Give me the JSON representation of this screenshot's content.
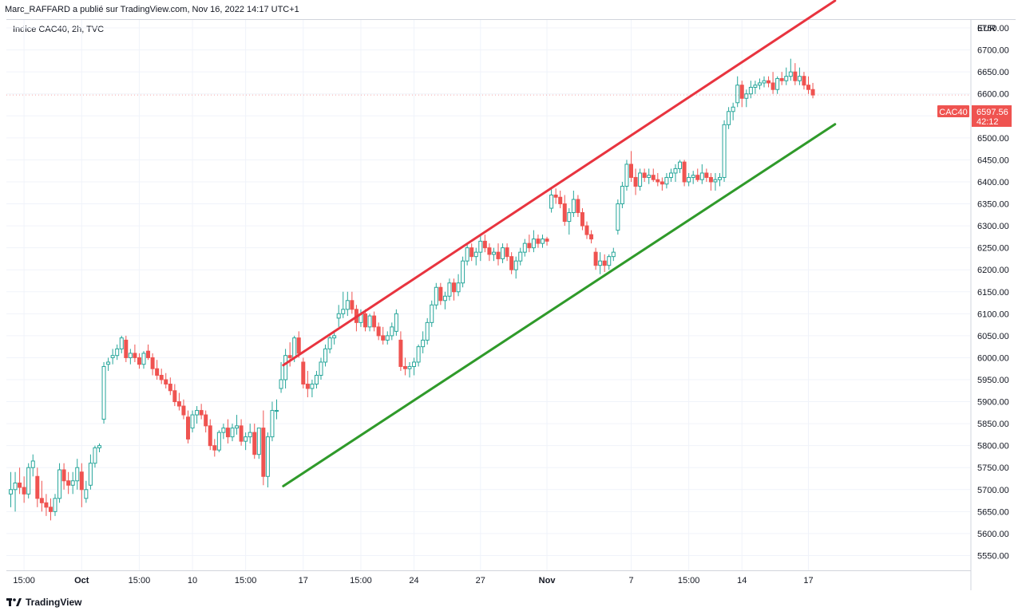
{
  "header": {
    "published_by": "Marc_RAFFARD a publié sur TradingView.com, Nov 16, 2022 14:17 UTC+1",
    "symbol_line": "Indice CAC40, 2h, TVC"
  },
  "footer": {
    "brand": "TradingView",
    "logo_icon": "tradingview-logo-icon"
  },
  "colors": {
    "up": "#26a69a",
    "down": "#ef5350",
    "resistance": "#e8343f",
    "support": "#2f9a2a",
    "grid": "#f0f3fa",
    "axis_border": "#d1d4dc"
  },
  "chart_data": {
    "type": "candlestick",
    "currency_label": "EUR",
    "y_ticks": [
      5550,
      5600,
      5650,
      5700,
      5750,
      5800,
      5850,
      5900,
      5950,
      6000,
      6050,
      6100,
      6150,
      6200,
      6250,
      6300,
      6350,
      6400,
      6450,
      6500,
      6550,
      6600,
      6650,
      6700,
      6750
    ],
    "y_tick_labels": [
      "5550.00",
      "5600.00",
      "5650.00",
      "5700.00",
      "5750.00",
      "5800.00",
      "5850.00",
      "5900.00",
      "5950.00",
      "6000.00",
      "6050.00",
      "6100.00",
      "6150.00",
      "6200.00",
      "6250.00",
      "6300.00",
      "6350.00",
      "6400.00",
      "6450.00",
      "6500.00",
      "6550.00",
      "6600.00",
      "6650.00",
      "6700.00",
      "6750.00"
    ],
    "ylim": [
      5520,
      6800
    ],
    "x_tick_labels": [
      {
        "label": "15:00",
        "bar": 3,
        "bold": false
      },
      {
        "label": "Oct",
        "bar": 16,
        "bold": true
      },
      {
        "label": "15:00",
        "bar": 29,
        "bold": false
      },
      {
        "label": "10",
        "bar": 41,
        "bold": false
      },
      {
        "label": "15:00",
        "bar": 53,
        "bold": false
      },
      {
        "label": "17",
        "bar": 66,
        "bold": false
      },
      {
        "label": "15:00",
        "bar": 79,
        "bold": false
      },
      {
        "label": "24",
        "bar": 91,
        "bold": false
      },
      {
        "label": "27",
        "bar": 106,
        "bold": false
      },
      {
        "label": "Nov",
        "bar": 121,
        "bold": true
      },
      {
        "label": "7",
        "bar": 140,
        "bold": false
      },
      {
        "label": "15:00",
        "bar": 153,
        "bold": false
      },
      {
        "label": "14",
        "bar": 165,
        "bold": false
      },
      {
        "label": "17",
        "bar": 180,
        "bold": false
      }
    ],
    "ohlc": [
      [
        5690,
        5740,
        5660,
        5700
      ],
      [
        5700,
        5740,
        5650,
        5715
      ],
      [
        5715,
        5750,
        5690,
        5705
      ],
      [
        5705,
        5730,
        5670,
        5690
      ],
      [
        5690,
        5760,
        5680,
        5750
      ],
      [
        5750,
        5780,
        5730,
        5765
      ],
      [
        5730,
        5750,
        5660,
        5680
      ],
      [
        5680,
        5720,
        5650,
        5670
      ],
      [
        5670,
        5690,
        5640,
        5660
      ],
      [
        5660,
        5680,
        5630,
        5650
      ],
      [
        5650,
        5690,
        5640,
        5680
      ],
      [
        5680,
        5760,
        5670,
        5745
      ],
      [
        5745,
        5760,
        5700,
        5720
      ],
      [
        5720,
        5740,
        5690,
        5710
      ],
      [
        5710,
        5740,
        5690,
        5720
      ],
      [
        5720,
        5770,
        5700,
        5750
      ],
      [
        5740,
        5760,
        5660,
        5700
      ],
      [
        5680,
        5720,
        5670,
        5700
      ],
      [
        5710,
        5780,
        5700,
        5760
      ],
      [
        5760,
        5800,
        5750,
        5795
      ],
      [
        5795,
        5805,
        5785,
        5800
      ],
      [
        5860,
        5990,
        5850,
        5980
      ],
      [
        5985,
        6000,
        5970,
        5990
      ],
      [
        6000,
        6020,
        5985,
        6005
      ],
      [
        6005,
        6030,
        5995,
        6020
      ],
      [
        6020,
        6050,
        6010,
        6045
      ],
      [
        6040,
        6050,
        5990,
        6000
      ],
      [
        6000,
        6020,
        5985,
        6010
      ],
      [
        6010,
        6030,
        5990,
        6000
      ],
      [
        6000,
        6010,
        5975,
        5985
      ],
      [
        5985,
        6015,
        5975,
        6010
      ],
      [
        6015,
        6030,
        5995,
        6000
      ],
      [
        6000,
        6010,
        5960,
        5975
      ],
      [
        5975,
        5995,
        5950,
        5960
      ],
      [
        5960,
        5975,
        5940,
        5950
      ],
      [
        5950,
        5965,
        5930,
        5940
      ],
      [
        5940,
        5955,
        5915,
        5925
      ],
      [
        5925,
        5940,
        5890,
        5900
      ],
      [
        5900,
        5920,
        5880,
        5890
      ],
      [
        5890,
        5905,
        5860,
        5870
      ],
      [
        5865,
        5880,
        5805,
        5815
      ],
      [
        5840,
        5880,
        5830,
        5870
      ],
      [
        5870,
        5890,
        5850,
        5880
      ],
      [
        5880,
        5895,
        5860,
        5870
      ],
      [
        5870,
        5880,
        5830,
        5845
      ],
      [
        5845,
        5860,
        5790,
        5800
      ],
      [
        5800,
        5815,
        5775,
        5790
      ],
      [
        5790,
        5835,
        5785,
        5830
      ],
      [
        5830,
        5850,
        5815,
        5840
      ],
      [
        5840,
        5860,
        5805,
        5820
      ],
      [
        5820,
        5850,
        5810,
        5840
      ],
      [
        5840,
        5870,
        5825,
        5845
      ],
      [
        5845,
        5860,
        5800,
        5810
      ],
      [
        5810,
        5830,
        5790,
        5820
      ],
      [
        5820,
        5850,
        5805,
        5830
      ],
      [
        5830,
        5850,
        5770,
        5780
      ],
      [
        5780,
        5840,
        5770,
        5840
      ],
      [
        5840,
        5880,
        5710,
        5730
      ],
      [
        5730,
        5830,
        5705,
        5820
      ],
      [
        5820,
        5900,
        5810,
        5880
      ],
      [
        5880,
        5905,
        5860,
        5880
      ],
      [
        5930,
        5990,
        5920,
        5950
      ],
      [
        5950,
        6020,
        5930,
        6005
      ],
      [
        6005,
        6035,
        5980,
        6000
      ],
      [
        6000,
        6050,
        5990,
        6045
      ],
      [
        6045,
        6060,
        6000,
        6010
      ],
      [
        5990,
        6000,
        5930,
        5940
      ],
      [
        5940,
        5970,
        5910,
        5930
      ],
      [
        5930,
        5950,
        5910,
        5940
      ],
      [
        5940,
        5970,
        5930,
        5960
      ],
      [
        5960,
        6000,
        5950,
        5990
      ],
      [
        5990,
        6030,
        5980,
        6020
      ],
      [
        6020,
        6050,
        6010,
        6045
      ],
      [
        6045,
        6060,
        6030,
        6050
      ],
      [
        6090,
        6120,
        6070,
        6100
      ],
      [
        6100,
        6150,
        6090,
        6110
      ],
      [
        6110,
        6150,
        6095,
        6130
      ],
      [
        6130,
        6150,
        6100,
        6110
      ],
      [
        6110,
        6120,
        6060,
        6080
      ],
      [
        6080,
        6110,
        6070,
        6100
      ],
      [
        6100,
        6110,
        6060,
        6070
      ],
      [
        6070,
        6100,
        6060,
        6095
      ],
      [
        6095,
        6105,
        6060,
        6070
      ],
      [
        6070,
        6080,
        6040,
        6050
      ],
      [
        6050,
        6070,
        6030,
        6040
      ],
      [
        6040,
        6060,
        6030,
        6050
      ],
      [
        6050,
        6080,
        6040,
        6070
      ],
      [
        6060,
        6110,
        6050,
        6100
      ],
      [
        6040,
        6060,
        5970,
        5980
      ],
      [
        5980,
        6000,
        5960,
        5975
      ],
      [
        5975,
        5990,
        5955,
        5980
      ],
      [
        5980,
        6000,
        5960,
        5990
      ],
      [
        5990,
        6030,
        5980,
        6025
      ],
      [
        6025,
        6060,
        6010,
        6040
      ],
      [
        6040,
        6090,
        6030,
        6080
      ],
      [
        6080,
        6130,
        6070,
        6120
      ],
      [
        6120,
        6170,
        6110,
        6160
      ],
      [
        6160,
        6170,
        6120,
        6130
      ],
      [
        6130,
        6150,
        6110,
        6140
      ],
      [
        6140,
        6180,
        6130,
        6170
      ],
      [
        6170,
        6180,
        6130,
        6150
      ],
      [
        6150,
        6190,
        6140,
        6170
      ],
      [
        6170,
        6230,
        6160,
        6220
      ],
      [
        6220,
        6260,
        6210,
        6250
      ],
      [
        6250,
        6260,
        6220,
        6230
      ],
      [
        6230,
        6250,
        6210,
        6240
      ],
      [
        6240,
        6280,
        6220,
        6265
      ],
      [
        6265,
        6280,
        6240,
        6250
      ],
      [
        6250,
        6260,
        6220,
        6235
      ],
      [
        6235,
        6250,
        6220,
        6240
      ],
      [
        6240,
        6260,
        6210,
        6225
      ],
      [
        6225,
        6260,
        6215,
        6250
      ],
      [
        6250,
        6260,
        6220,
        6230
      ],
      [
        6230,
        6240,
        6190,
        6200
      ],
      [
        6200,
        6230,
        6180,
        6220
      ],
      [
        6220,
        6250,
        6210,
        6240
      ],
      [
        6240,
        6270,
        6230,
        6260
      ],
      [
        6260,
        6280,
        6240,
        6250
      ],
      [
        6250,
        6290,
        6240,
        6270
      ],
      [
        6270,
        6280,
        6250,
        6260
      ],
      [
        6260,
        6280,
        6250,
        6270
      ],
      [
        6270,
        6275,
        6255,
        6265
      ],
      [
        6340,
        6385,
        6330,
        6370
      ],
      [
        6370,
        6385,
        6350,
        6365
      ],
      [
        6365,
        6380,
        6340,
        6350
      ],
      [
        6350,
        6370,
        6300,
        6310
      ],
      [
        6310,
        6340,
        6280,
        6330
      ],
      [
        6330,
        6380,
        6320,
        6360
      ],
      [
        6360,
        6370,
        6320,
        6330
      ],
      [
        6330,
        6340,
        6290,
        6300
      ],
      [
        6300,
        6310,
        6270,
        6280
      ],
      [
        6280,
        6290,
        6260,
        6270
      ],
      [
        6240,
        6250,
        6200,
        6210
      ],
      [
        6210,
        6240,
        6190,
        6220
      ],
      [
        6220,
        6235,
        6195,
        6210
      ],
      [
        6210,
        6235,
        6200,
        6230
      ],
      [
        6230,
        6250,
        6220,
        6240
      ],
      [
        6290,
        6360,
        6280,
        6350
      ],
      [
        6350,
        6400,
        6340,
        6390
      ],
      [
        6390,
        6450,
        6380,
        6440
      ],
      [
        6440,
        6470,
        6400,
        6410
      ],
      [
        6410,
        6430,
        6370,
        6390
      ],
      [
        6390,
        6430,
        6380,
        6420
      ],
      [
        6420,
        6430,
        6400,
        6410
      ],
      [
        6410,
        6430,
        6395,
        6415
      ],
      [
        6415,
        6430,
        6400,
        6405
      ],
      [
        6405,
        6420,
        6390,
        6400
      ],
      [
        6400,
        6410,
        6380,
        6395
      ],
      [
        6395,
        6420,
        6385,
        6410
      ],
      [
        6410,
        6430,
        6400,
        6420
      ],
      [
        6420,
        6440,
        6400,
        6430
      ],
      [
        6430,
        6450,
        6420,
        6445
      ],
      [
        6445,
        6450,
        6390,
        6400
      ],
      [
        6400,
        6420,
        6390,
        6410
      ],
      [
        6410,
        6425,
        6395,
        6415
      ],
      [
        6415,
        6430,
        6400,
        6405
      ],
      [
        6405,
        6440,
        6395,
        6420
      ],
      [
        6420,
        6430,
        6400,
        6410
      ],
      [
        6410,
        6420,
        6380,
        6400
      ],
      [
        6400,
        6420,
        6380,
        6405
      ],
      [
        6405,
        6420,
        6390,
        6410
      ],
      [
        6410,
        6540,
        6400,
        6530
      ],
      [
        6530,
        6570,
        6520,
        6560
      ],
      [
        6560,
        6580,
        6540,
        6570
      ],
      [
        6580,
        6640,
        6570,
        6620
      ],
      [
        6620,
        6630,
        6570,
        6590
      ],
      [
        6590,
        6610,
        6570,
        6600
      ],
      [
        6600,
        6630,
        6590,
        6615
      ],
      [
        6615,
        6630,
        6600,
        6620
      ],
      [
        6620,
        6635,
        6610,
        6625
      ],
      [
        6625,
        6640,
        6615,
        6630
      ],
      [
        6630,
        6640,
        6615,
        6625
      ],
      [
        6625,
        6650,
        6600,
        6610
      ],
      [
        6610,
        6640,
        6600,
        6635
      ],
      [
        6635,
        6650,
        6620,
        6630
      ],
      [
        6630,
        6660,
        6620,
        6640
      ],
      [
        6640,
        6680,
        6630,
        6650
      ],
      [
        6650,
        6670,
        6620,
        6630
      ],
      [
        6630,
        6660,
        6620,
        6640
      ],
      [
        6640,
        6650,
        6610,
        6620
      ],
      [
        6620,
        6640,
        6600,
        6610
      ],
      [
        6610,
        6625,
        6590,
        6597.56
      ]
    ],
    "trendlines": [
      {
        "name": "resistance",
        "x_bar": [
          61.5,
          186
        ],
        "y": [
          5983,
          6812
        ]
      },
      {
        "name": "support",
        "x_bar": [
          61.5,
          186
        ],
        "y": [
          5708,
          6531
        ]
      }
    ],
    "last_price_label": "CAC40",
    "last_price": "6597.56",
    "countdown": "42:12",
    "grid": true
  }
}
